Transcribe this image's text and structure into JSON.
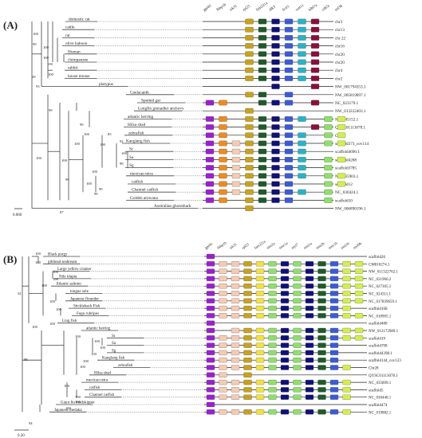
{
  "panelA": {
    "label": "(A)",
    "gene_headers": [
      "gpr85",
      "fkbp1b",
      "stk31",
      "rpl23",
      "fam221a",
      "dlk3",
      "fezf1",
      "wnt11",
      "klhl7a",
      "cdk5r",
      "rnf38"
    ],
    "leaves": [
      {
        "name": "domestic cat",
        "acc": "chr3"
      },
      {
        "name": "cattle",
        "acc": "chr13"
      },
      {
        "name": "rat",
        "acc": "chr 22"
      },
      {
        "name": "olive baboon",
        "acc": "chr16"
      },
      {
        "name": "Human",
        "acc": "chr20"
      },
      {
        "name": "chimpanzee",
        "acc": "chr20"
      },
      {
        "name": "rabbit",
        "acc": "chr4"
      },
      {
        "name": "house mouse",
        "acc": "chr2"
      },
      {
        "name": "platypus",
        "acc": "NW_001794353.1"
      },
      {
        "name": "Coelacanth",
        "acc": "NW_005819097.1"
      },
      {
        "name": "Spotted gar",
        "acc": "NC_023179.1"
      },
      {
        "name": "Longfin grenadier anchovy",
        "acc": "NW_013222403.1"
      },
      {
        "name": "atlantic herring",
        "acc": "NC_045152.1"
      },
      {
        "name": "Hilsa shad",
        "acc": "QYSC01113078.1"
      },
      {
        "name": "zebrafish",
        "acc": "Chr17"
      },
      {
        "name": "Kanglang fish",
        "acc": "scaffold373_cov114"
      },
      {
        "name": "Sr",
        "acc": "scaffold4690.1"
      },
      {
        "name": "Sa",
        "acc": "scaffold4208"
      },
      {
        "name": "Sg",
        "acc": "scaffold3785"
      },
      {
        "name": "mexican tetra",
        "acc": "NC_035903.1"
      },
      {
        "name": "catfish",
        "acc": "scaffold12"
      },
      {
        "name": "Channel catfish",
        "acc": "NC_030424.1"
      },
      {
        "name": "Golden arowana",
        "acc": "scaffold10"
      },
      {
        "name": "Australian ghostshark",
        "acc": "NW_006890196.1"
      }
    ],
    "bootstrap": [
      "100",
      "99",
      "100",
      "100",
      "100",
      "100",
      "99",
      "100",
      "99",
      "100",
      "100",
      "100",
      "99",
      "100",
      "85",
      "92",
      "100",
      "99",
      "100",
      "100",
      "99",
      "99",
      "87",
      "29",
      "93"
    ],
    "scale": "0.060"
  },
  "panelB": {
    "label": "(B)",
    "gene_headers": [
      "gpr85",
      "fkbp1b",
      "stk31",
      "rpl23",
      "fam221a",
      "tnnt2a",
      "tnnc1a",
      "myl7",
      "tnni1a",
      "tnnt2b",
      "tnnc1b",
      "tnni1b",
      "myl9b"
    ],
    "leaves": [
      {
        "name": "Black porgy",
        "acc": "scaffold26"
      },
      {
        "name": "gilthead seabream",
        "acc": "CM010274.1"
      },
      {
        "name": "Large yellow croaker",
        "acc": "NW_011322762.1"
      },
      {
        "name": "Nile tilapia",
        "acc": "NC_031966.2"
      },
      {
        "name": "Atlantic salmon",
        "acc": "NC_027305.1"
      },
      {
        "name": "tongue sole",
        "acc": "NC_024311.1"
      },
      {
        "name": "Japanese flounder",
        "acc": "NC_017839659.1"
      },
      {
        "name": "Stickleback Fish",
        "acc": "scaffold168"
      },
      {
        "name": "Fugu rubripes",
        "acc": "NC_018905.1"
      },
      {
        "name": "Ling fish",
        "acc": "scaffold480"
      },
      {
        "name": "atlantic herring",
        "acc": "NW_012172989.1"
      },
      {
        "name": "Sr",
        "acc": "scaffold19"
      },
      {
        "name": "Sa",
        "acc": "scaffold708"
      },
      {
        "name": "Sg",
        "acc": "scaffold4398.1"
      },
      {
        "name": "Kanglang fish",
        "acc": "scaffold144_cov123"
      },
      {
        "name": "zebrafish",
        "acc": "Chr28"
      },
      {
        "name": "Hilsa shad",
        "acc": "QYSC01113078.1"
      },
      {
        "name": "mexican tetra",
        "acc": "NC_035899.1"
      },
      {
        "name": "catfish",
        "acc": "scaffold5"
      },
      {
        "name": "Channel catfish",
        "acc": "NC_030440.1"
      },
      {
        "name": "Giant fin mudskipper",
        "acc": "scaffold474"
      },
      {
        "name": "Japanese medaka",
        "acc": "NC_019882.1"
      }
    ],
    "bootstrap": [
      "100",
      "100",
      "100",
      "100",
      "32",
      "100",
      "100",
      "100",
      "100",
      "100",
      "100",
      "100",
      "100",
      "100",
      "100",
      "98",
      "100",
      "100",
      "100",
      "100",
      "94",
      "100"
    ],
    "scale": "0.20"
  },
  "colors": {
    "purple": "#9b1fd1",
    "orange": "#f08a1c",
    "peach": "#f7cbb2",
    "olive": "#c7a21c",
    "yellow": "#f4e23a",
    "darkgreen": "#1e5a2a",
    "navy": "#10107a",
    "blue": "#3a5bd8",
    "cyan": "#27b3c7",
    "maroon": "#8a0f3a",
    "lightgreen": "#8ee06a",
    "lime": "#d2f04a"
  }
}
